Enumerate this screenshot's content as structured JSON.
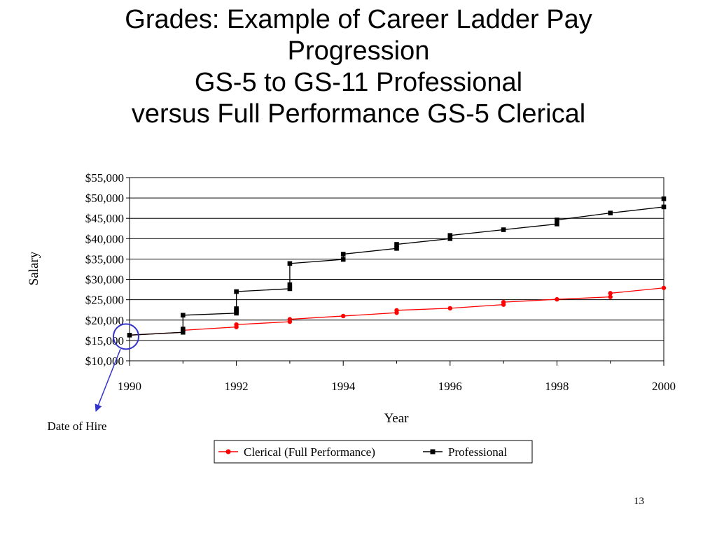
{
  "title_lines": [
    "Grades:  Example of Career Ladder Pay",
    "Progression",
    "GS-5 to GS-11 Professional",
    "versus Full Performance GS-5 Clerical"
  ],
  "chart_data": {
    "type": "line",
    "xlabel": "Year",
    "ylabel": "Salary",
    "xlim": [
      1990,
      2000
    ],
    "ylim": [
      10000,
      55000
    ],
    "x_ticks": [
      "1990",
      "1992",
      "1994",
      "1996",
      "1998",
      "2000"
    ],
    "y_ticks": [
      "$10,000",
      "$15,000",
      "$20,000",
      "$25,000",
      "$30,000",
      "$35,000",
      "$40,000",
      "$45,000",
      "$50,000",
      "$55,000"
    ],
    "grid": "horizontal",
    "legend_position": "bottom",
    "series": [
      {
        "name": "Clerical (Full Performance)",
        "color": "#ff0000",
        "marker": "circle",
        "points": [
          [
            1990,
            16300
          ],
          [
            1991,
            17000
          ],
          [
            1991,
            17500
          ],
          [
            1992,
            18300
          ],
          [
            1992,
            18900
          ],
          [
            1993,
            19600
          ],
          [
            1993,
            20200
          ],
          [
            1994,
            21000
          ],
          [
            1995,
            21800
          ],
          [
            1995,
            22400
          ],
          [
            1996,
            22900
          ],
          [
            1997,
            23800
          ],
          [
            1997,
            24400
          ],
          [
            1998,
            25100
          ],
          [
            1999,
            25700
          ],
          [
            1999,
            26600
          ],
          [
            2000,
            27900
          ]
        ]
      },
      {
        "name": "Professional",
        "color": "#000000",
        "marker": "square",
        "points": [
          [
            1990,
            16300
          ],
          [
            1991,
            17000
          ],
          [
            1991,
            17800
          ],
          [
            1991,
            21200
          ],
          [
            1992,
            21700
          ],
          [
            1992,
            22300
          ],
          [
            1992,
            22800
          ],
          [
            1992,
            27000
          ],
          [
            1993,
            27700
          ],
          [
            1993,
            28700
          ],
          [
            1993,
            33900
          ],
          [
            1994,
            34900
          ],
          [
            1994,
            36200
          ],
          [
            1995,
            37600
          ],
          [
            1995,
            38600
          ],
          [
            1996,
            40000
          ],
          [
            1996,
            40800
          ],
          [
            1997,
            42200
          ],
          [
            1998,
            43600
          ],
          [
            1998,
            44600
          ],
          [
            1999,
            46300
          ],
          [
            2000,
            47800
          ],
          [
            2000,
            49800
          ]
        ]
      }
    ]
  },
  "annotation": {
    "label": "Date of Hire",
    "highlight_point": [
      1990,
      16300
    ],
    "highlight_color": "#3333cc"
  },
  "page_number": "13"
}
